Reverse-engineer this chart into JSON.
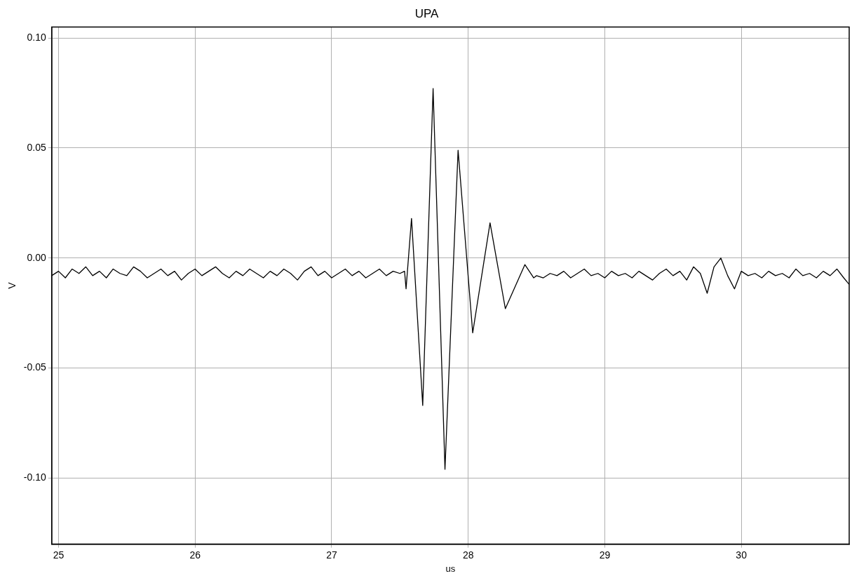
{
  "chart_data": {
    "type": "line",
    "title": "UPA",
    "xlabel": "us",
    "ylabel": "V",
    "x": [
      24.95,
      25.0,
      25.05,
      25.1,
      25.15,
      25.2,
      25.25,
      25.3,
      25.35,
      25.4,
      25.45,
      25.5,
      25.55,
      25.6,
      25.65,
      25.7,
      25.75,
      25.8,
      25.85,
      25.9,
      25.95,
      26.0,
      26.05,
      26.1,
      26.15,
      26.2,
      26.25,
      26.3,
      26.35,
      26.4,
      26.45,
      26.5,
      26.55,
      26.6,
      26.65,
      26.7,
      26.75,
      26.8,
      26.85,
      26.9,
      26.95,
      27.0,
      27.05,
      27.1,
      27.15,
      27.2,
      27.25,
      27.3,
      27.35,
      27.4,
      27.45,
      27.5,
      27.534,
      27.545,
      27.585,
      27.667,
      27.743,
      27.83,
      27.926,
      28.033,
      28.16,
      28.272,
      28.415,
      28.48,
      28.5,
      28.55,
      28.6,
      28.65,
      28.7,
      28.75,
      28.8,
      28.85,
      28.9,
      28.95,
      29.0,
      29.05,
      29.1,
      29.15,
      29.2,
      29.25,
      29.3,
      29.35,
      29.4,
      29.45,
      29.5,
      29.55,
      29.6,
      29.65,
      29.7,
      29.75,
      29.8,
      29.85,
      29.9,
      29.95,
      30.0,
      30.05,
      30.1,
      30.15,
      30.2,
      30.25,
      30.3,
      30.35,
      30.4,
      30.45,
      30.5,
      30.55,
      30.6,
      30.65,
      30.7,
      30.75,
      30.79
    ],
    "series": [
      {
        "color": "#000000",
        "values": [
          -0.008,
          -0.006,
          -0.009,
          -0.005,
          -0.007,
          -0.004,
          -0.008,
          -0.006,
          -0.009,
          -0.005,
          -0.007,
          -0.008,
          -0.004,
          -0.006,
          -0.009,
          -0.007,
          -0.005,
          -0.008,
          -0.006,
          -0.01,
          -0.007,
          -0.005,
          -0.008,
          -0.006,
          -0.004,
          -0.007,
          -0.009,
          -0.006,
          -0.008,
          -0.005,
          -0.007,
          -0.009,
          -0.006,
          -0.008,
          -0.005,
          -0.007,
          -0.01,
          -0.006,
          -0.004,
          -0.008,
          -0.006,
          -0.009,
          -0.007,
          -0.005,
          -0.008,
          -0.006,
          -0.009,
          -0.007,
          -0.005,
          -0.008,
          -0.006,
          -0.007,
          -0.006,
          -0.014,
          0.018,
          -0.067,
          0.077,
          -0.096,
          0.049,
          -0.034,
          0.016,
          -0.023,
          -0.003,
          -0.009,
          -0.008,
          -0.009,
          -0.007,
          -0.008,
          -0.006,
          -0.009,
          -0.007,
          -0.005,
          -0.008,
          -0.007,
          -0.009,
          -0.006,
          -0.008,
          -0.007,
          -0.009,
          -0.006,
          -0.008,
          -0.01,
          -0.007,
          -0.005,
          -0.008,
          -0.006,
          -0.01,
          -0.004,
          -0.007,
          -0.016,
          -0.004,
          0.0,
          -0.008,
          -0.014,
          -0.006,
          -0.008,
          -0.007,
          -0.009,
          -0.006,
          -0.008,
          -0.007,
          -0.009,
          -0.005,
          -0.008,
          -0.007,
          -0.009,
          -0.006,
          -0.008,
          -0.005,
          -0.009,
          -0.012
        ]
      }
    ],
    "xlim": [
      24.95,
      30.79
    ],
    "xticks": [
      25,
      26,
      27,
      28,
      29,
      30
    ],
    "ylim": [
      -0.13,
      0.105
    ],
    "yticks": [
      {
        "value": -0.1,
        "label": "-0.10"
      },
      {
        "value": -0.05,
        "label": "-0.05"
      },
      {
        "value": 0,
        "label": "0.00"
      },
      {
        "value": 0.05,
        "label": "0.05"
      },
      {
        "value": 0.1,
        "label": "0.10"
      }
    ],
    "grid": true,
    "legend": false,
    "marker": "none",
    "line_style": "solid"
  }
}
